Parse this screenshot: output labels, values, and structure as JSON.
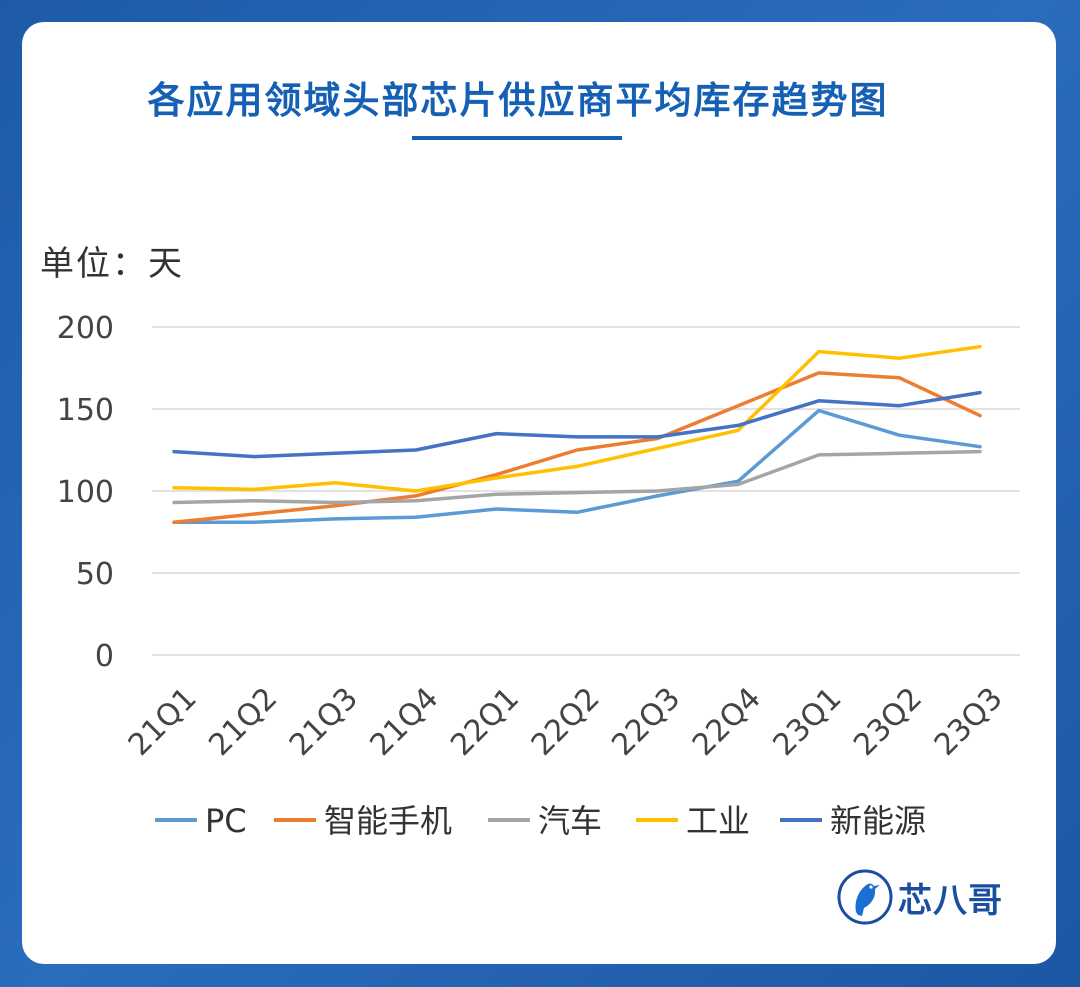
{
  "header": {
    "title": "各应用领域头部芯片供应商平均库存趋势图"
  },
  "unit_label": "单位：天",
  "brand": {
    "name": "芯八哥",
    "primary_color": "#1560b4"
  },
  "chart_data": {
    "type": "line",
    "title": "各应用领域头部芯片供应商平均库存趋势图",
    "ylabel": "单位：天",
    "xlabel": "",
    "ylim": [
      0,
      200
    ],
    "yticks": [
      0,
      50,
      100,
      150,
      200
    ],
    "grid": true,
    "legend_position": "bottom",
    "categories": [
      "21Q1",
      "21Q2",
      "21Q3",
      "21Q4",
      "22Q1",
      "22Q2",
      "22Q3",
      "22Q4",
      "23Q1",
      "23Q2",
      "23Q3"
    ],
    "series": [
      {
        "name": "PC",
        "color": "#5b9bd5",
        "values": [
          81,
          81,
          83,
          84,
          89,
          87,
          97,
          106,
          149,
          134,
          127
        ]
      },
      {
        "name": "智能手机",
        "color": "#ed7d31",
        "values": [
          81,
          86,
          91,
          97,
          110,
          125,
          132,
          152,
          172,
          169,
          146
        ]
      },
      {
        "name": "汽车",
        "color": "#a5a5a5",
        "values": [
          93,
          94,
          93,
          94,
          98,
          99,
          100,
          104,
          122,
          123,
          124
        ]
      },
      {
        "name": "工业",
        "color": "#ffc000",
        "values": [
          102,
          101,
          105,
          100,
          108,
          115,
          126,
          137,
          185,
          181,
          188
        ]
      },
      {
        "name": "新能源",
        "color": "#4472c4",
        "values": [
          124,
          121,
          123,
          125,
          135,
          133,
          133,
          140,
          155,
          152,
          160
        ]
      }
    ]
  }
}
